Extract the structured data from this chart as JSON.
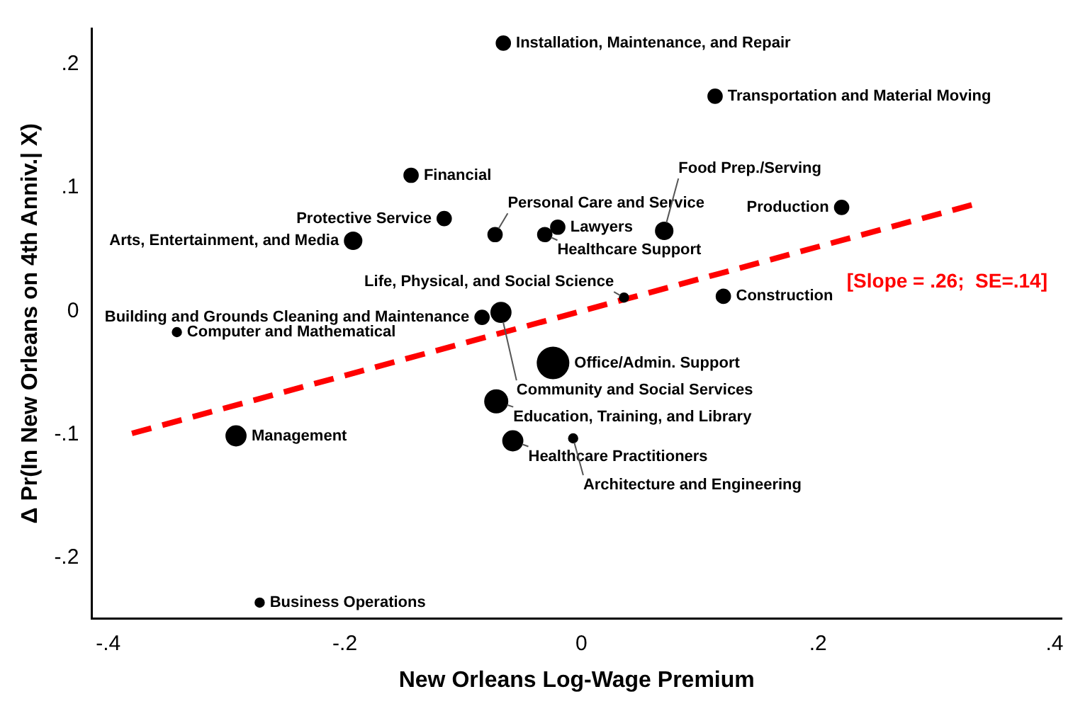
{
  "chart_data": {
    "type": "bubble",
    "xlabel": "New Orleans Log-Wage Premium",
    "ylabel": "Δ Pr(In New Orleans on 4th Anniv.| X)",
    "xlim": [
      -0.414,
      0.406
    ],
    "ylim": [
      -0.249,
      0.229
    ],
    "xticks": [
      {
        "value": -0.4,
        "label": "-.4"
      },
      {
        "value": -0.2,
        "label": "-.2"
      },
      0,
      {
        "value": 0.2,
        "label": ".2"
      },
      {
        "value": 0.4,
        "label": ".4"
      }
    ],
    "yticks": [
      {
        "value": -0.2,
        "label": "-.2"
      },
      {
        "value": -0.1,
        "label": "-.1"
      },
      0,
      {
        "value": 0.1,
        "label": ".1"
      },
      {
        "value": 0.2,
        "label": ".2"
      }
    ],
    "grid": false,
    "legend": false,
    "marker": "circle",
    "series": [
      {
        "color": "#000000",
        "x": [
          -0.066,
          0.113,
          -0.144,
          0.22,
          -0.116,
          -0.193,
          -0.073,
          -0.02,
          -0.031,
          0.07,
          0.036,
          0.12,
          -0.068,
          -0.084,
          -0.342,
          -0.024,
          -0.072,
          -0.292,
          -0.058,
          -0.007,
          -0.272
        ],
        "values": [
          0.217,
          0.174,
          0.11,
          0.084,
          0.075,
          0.057,
          0.062,
          0.068,
          0.062,
          0.065,
          0.011,
          0.012,
          -0.001,
          -0.005,
          -0.017,
          -0.042,
          -0.073,
          -0.101,
          -0.105,
          -0.103,
          -0.236
        ],
        "sizes": [
          0.2,
          0.2,
          0.2,
          0.2,
          0.2,
          0.3,
          0.2,
          0.2,
          0.2,
          0.3,
          0.08,
          0.2,
          0.4,
          0.2,
          0.08,
          1,
          0.53,
          0.4,
          0.4,
          0.08,
          0.08
        ]
      },
      {
        "type": "line",
        "color": "#ff0000",
        "line_style": "dashed",
        "marker": "none",
        "x": [
          -0.38,
          0.33
        ],
        "values": [
          -0.099,
          0.086
        ]
      }
    ],
    "annotations": [
      {
        "text": "Installation, Maintenance, and Repair",
        "x": -0.066,
        "y": 0.217
      },
      {
        "text": "Transportation and Material Moving",
        "x": 0.113,
        "y": 0.174
      },
      {
        "text": "Financial",
        "x": -0.144,
        "y": 0.11
      },
      {
        "text": "Production",
        "x": 0.22,
        "y": 0.084
      },
      {
        "text": "Protective Service",
        "x": -0.116,
        "y": 0.075
      },
      {
        "text": "Arts, Entertainment, and Media",
        "x": -0.193,
        "y": 0.057
      },
      {
        "text": "Personal Care and Service",
        "x": -0.073,
        "y": 0.062
      },
      {
        "text": "Lawyers",
        "x": -0.02,
        "y": 0.068
      },
      {
        "text": "Healthcare Support",
        "x": -0.031,
        "y": 0.062
      },
      {
        "text": "Food Prep./Serving",
        "x": 0.07,
        "y": 0.065
      },
      {
        "text": "Life, Physical, and Social Science",
        "x": 0.036,
        "y": 0.011
      },
      {
        "text": "Construction",
        "x": 0.12,
        "y": 0.012
      },
      {
        "text": "Community and Social Services",
        "x": -0.068,
        "y": -0.001
      },
      {
        "text": "Building and Grounds Cleaning and Maintenance",
        "x": -0.084,
        "y": -0.005
      },
      {
        "text": "Computer and Mathematical",
        "x": -0.342,
        "y": -0.017
      },
      {
        "text": "Office/Admin. Support",
        "x": -0.024,
        "y": -0.042
      },
      {
        "text": "Education, Training, and Library",
        "x": -0.072,
        "y": -0.073
      },
      {
        "text": "Management",
        "x": -0.292,
        "y": -0.101
      },
      {
        "text": "Healthcare Practitioners",
        "x": -0.058,
        "y": -0.105
      },
      {
        "text": "Architecture and Engineering",
        "x": -0.007,
        "y": -0.103
      },
      {
        "text": "Business Operations",
        "x": -0.272,
        "y": -0.236
      },
      "[Slope = .26;  SE=.14]"
    ]
  }
}
